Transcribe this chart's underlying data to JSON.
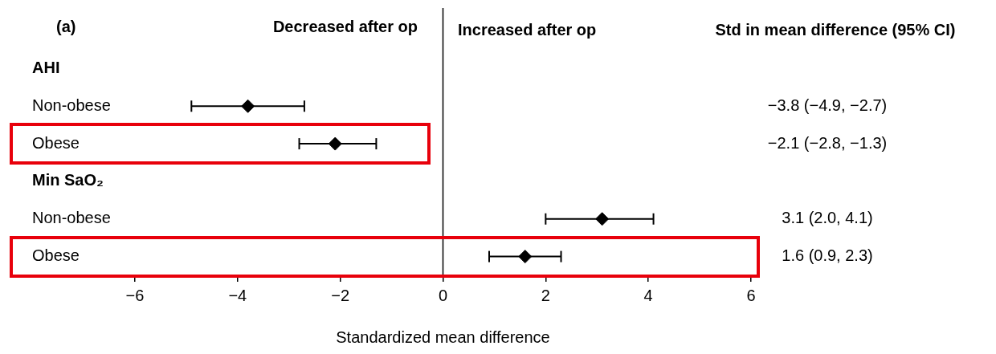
{
  "chart_data": {
    "type": "scatter",
    "orientation": "horizontal",
    "categories": [
      "AHI",
      "Non-obese",
      "Obese",
      "Min SaO₂",
      "Non-obese",
      "Obese"
    ],
    "values": [
      null,
      -3.8,
      -2.1,
      null,
      3.1,
      1.6
    ],
    "errors": [
      null,
      [
        -4.9,
        -2.7
      ],
      [
        -2.8,
        -1.3
      ],
      null,
      [
        2.0,
        4.1
      ],
      [
        0.9,
        2.3
      ]
    ],
    "color": "#000000",
    "marker": "diamond",
    "xlim": [
      -6,
      6
    ],
    "xticks": [
      {
        "value": -6,
        "label": "−6"
      },
      {
        "value": -4,
        "label": "−4"
      },
      {
        "value": -2,
        "label": "−2"
      },
      0,
      2,
      4,
      6
    ],
    "xlabel": "Standardized mean difference",
    "annotations": [
      "(a)",
      "Decreased after op",
      "Increased after op",
      "Std in mean difference (95% CI)",
      "−3.8 (−4.9, −2.7)",
      "−2.1 (−2.8, −1.3)",
      "3.1 (2.0, 4.1)",
      "1.6 (0.9, 2.3)"
    ],
    "ref_lines": [
      {
        "axis": "x",
        "value": 0,
        "color": "#000000"
      }
    ],
    "grid": false,
    "legend": false
  }
}
